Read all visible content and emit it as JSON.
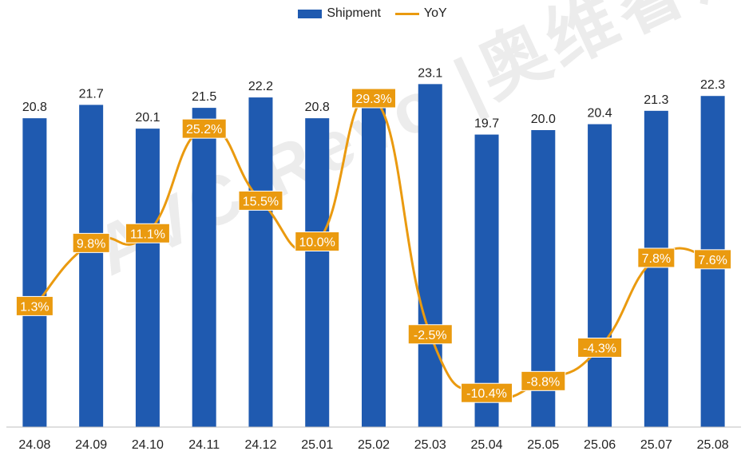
{
  "legend": {
    "bar_label": "Shipment",
    "line_label": "YoY"
  },
  "watermark": "AVC Revo |奥维睿沃",
  "colors": {
    "bar": "#1f5ab0",
    "line": "#ea9a0f",
    "line_label_bg": "#ea9a0f",
    "line_label_text": "#ffffff",
    "axis": "#bfbfbf",
    "bar_label_text": "#222222"
  },
  "chart_data": {
    "type": "bar",
    "title": "",
    "xlabel": "",
    "ylabel": "",
    "categories": [
      "24.08",
      "24.09",
      "24.10",
      "24.11",
      "24.12",
      "25.01",
      "25.02",
      "25.03",
      "25.04",
      "25.05",
      "25.06",
      "25.07",
      "25.08"
    ],
    "ylim": [
      0,
      25
    ],
    "y2lim": [
      -15,
      35
    ],
    "series": [
      {
        "name": "Shipment",
        "type": "bar",
        "axis": "primary",
        "values": [
          20.8,
          21.7,
          20.1,
          21.5,
          22.2,
          20.8,
          21.5,
          23.1,
          19.7,
          20.0,
          20.4,
          21.3,
          22.3
        ],
        "labels": [
          "20.8",
          "21.7",
          "20.1",
          "21.5",
          "22.2",
          "20.8",
          "21.5",
          "23.1",
          "19.7",
          "20.0",
          "20.4",
          "21.3",
          "22.3"
        ]
      },
      {
        "name": "YoY",
        "type": "line",
        "axis": "secondary",
        "unit": "%",
        "values": [
          1.3,
          9.8,
          11.1,
          25.2,
          15.5,
          10.0,
          29.3,
          -2.5,
          -10.4,
          -8.8,
          -4.3,
          7.8,
          7.6
        ],
        "labels": [
          "1.3%",
          "9.8%",
          "11.1%",
          "25.2%",
          "15.5%",
          "10.0%",
          "29.3%",
          "-2.5%",
          "-10.4%",
          "-8.8%",
          "-4.3%",
          "7.8%",
          "7.6%"
        ]
      }
    ]
  }
}
